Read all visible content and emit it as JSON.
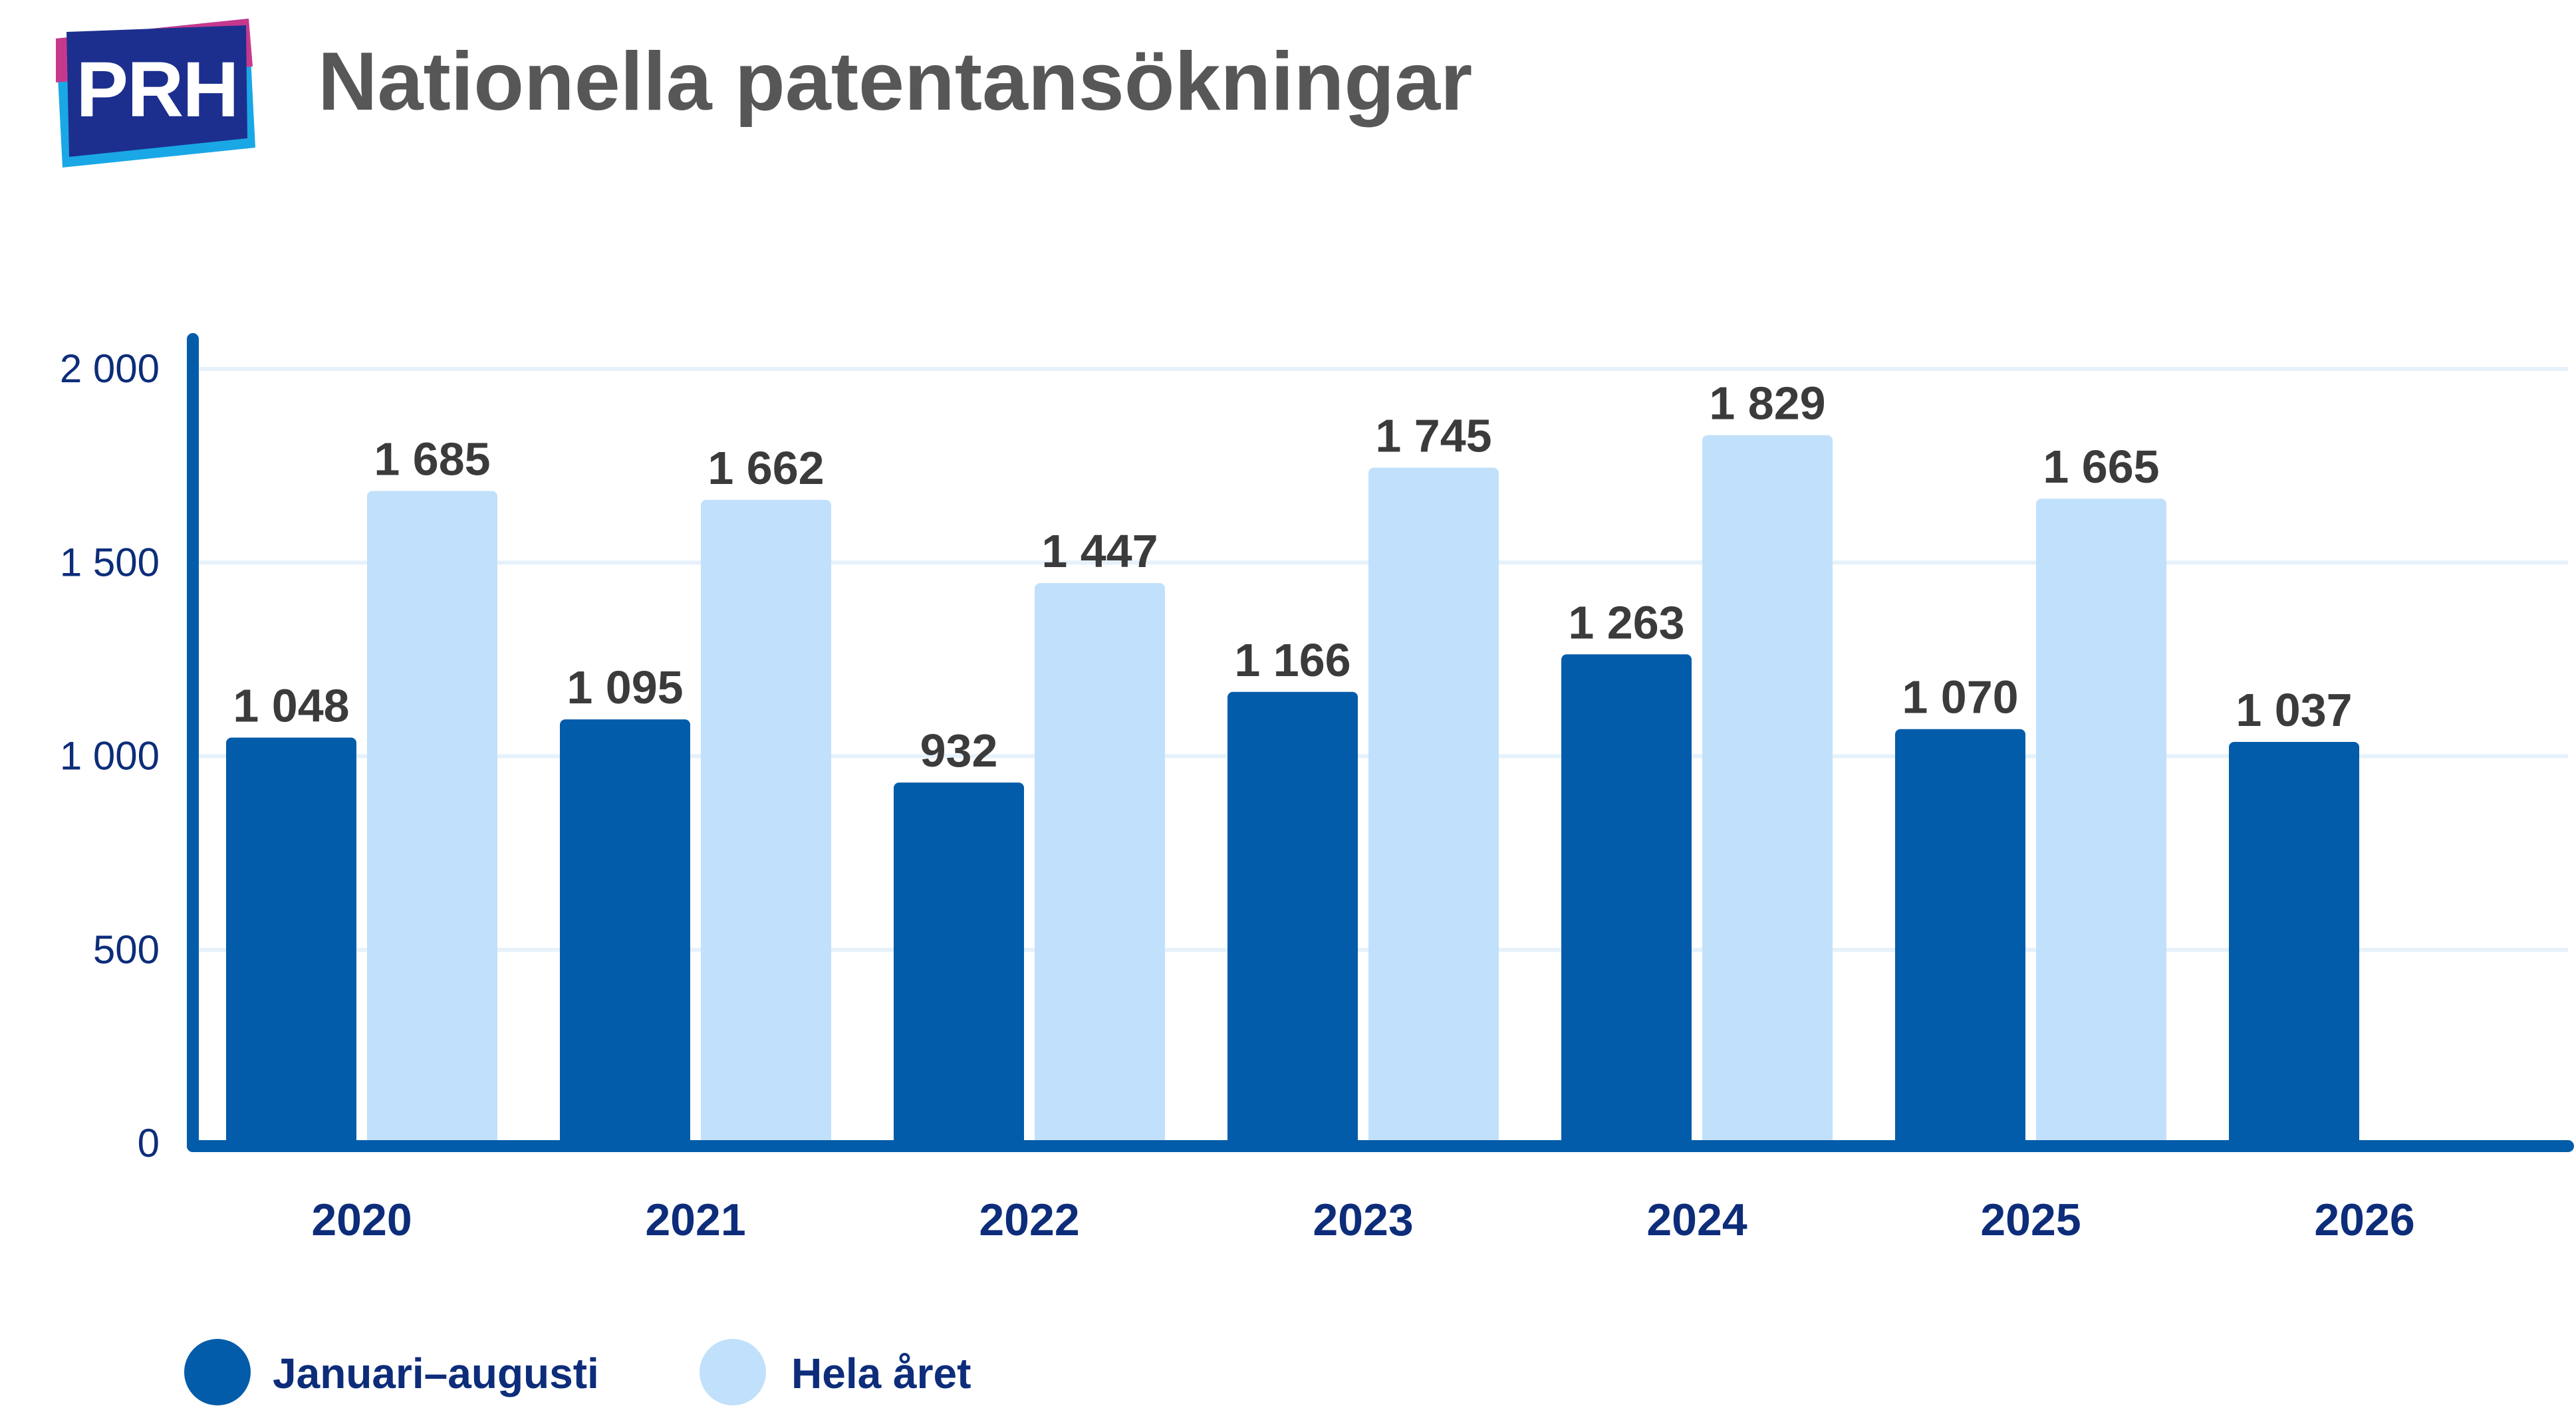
{
  "header": {
    "logo_text": "PRH",
    "title": "Nationella patentansökningar"
  },
  "colors": {
    "series_jan_aug": "#035ca9",
    "series_full_year": "#c1e0fb",
    "axis": "#035ca9",
    "grid": "#e6f1fb",
    "logo_blue_dark": "#1c2f8e",
    "logo_cyan": "#1aa7e6",
    "logo_magenta": "#c7388d"
  },
  "chart_data": {
    "type": "bar",
    "title": "Nationella patentansökningar",
    "categories": [
      "2020",
      "2021",
      "2022",
      "2023",
      "2024",
      "2025",
      "2026"
    ],
    "series": [
      {
        "name": "Januari–augusti",
        "values": [
          1048,
          1095,
          932,
          1166,
          1263,
          1070,
          1037
        ],
        "labels": [
          "1 048",
          "1 095",
          "932",
          "1 166",
          "1 263",
          "1 070",
          "1 037"
        ]
      },
      {
        "name": "Hela året",
        "values": [
          1685,
          1662,
          1447,
          1745,
          1829,
          1665,
          null
        ],
        "labels": [
          "1 685",
          "1 662",
          "1 447",
          "1 745",
          "1 829",
          "1 665",
          ""
        ]
      }
    ],
    "y_ticks": [
      {
        "value": 0,
        "label": "0"
      },
      {
        "value": 500,
        "label": "500"
      },
      {
        "value": 1000,
        "label": "1 000"
      },
      {
        "value": 1500,
        "label": "1 500"
      },
      {
        "value": 2000,
        "label": "2 000"
      }
    ],
    "ylim": [
      0,
      2000
    ],
    "grid": true,
    "legend_position": "bottom-left",
    "xlabel": "",
    "ylabel": ""
  }
}
